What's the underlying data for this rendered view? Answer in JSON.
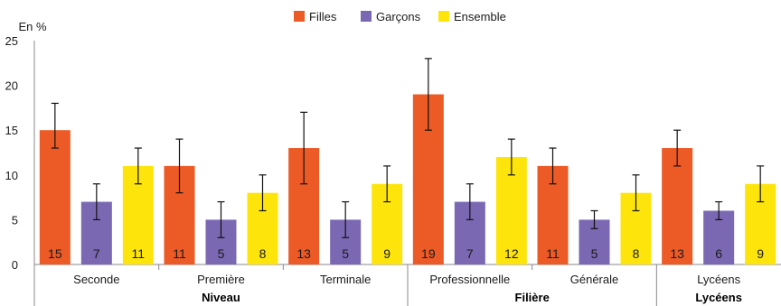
{
  "chart_data": {
    "type": "bar",
    "unit_label": "En %",
    "ylim": [
      0,
      25
    ],
    "yticks": [
      0,
      5,
      10,
      15,
      20,
      25
    ],
    "grid": false,
    "legend_position": "top-center",
    "categories": [
      "Seconde",
      "Première",
      "Terminale",
      "Professionnelle",
      "Générale",
      "Lycéens"
    ],
    "groups": [
      {
        "label": "Niveau",
        "categories": [
          "Seconde",
          "Première",
          "Terminale"
        ]
      },
      {
        "label": "Filière",
        "categories": [
          "Professionnelle",
          "Générale"
        ]
      },
      {
        "label": "Lycéens",
        "categories": [
          "Lycéens"
        ]
      }
    ],
    "series": [
      {
        "name": "Filles",
        "color": "#ec5a25",
        "values": [
          15,
          11,
          13,
          19,
          11,
          13
        ],
        "error_low": [
          13,
          8,
          9,
          15,
          9,
          11
        ],
        "error_high": [
          18,
          14,
          17,
          23,
          13,
          15
        ]
      },
      {
        "name": "Garçons",
        "color": "#7b68b3",
        "values": [
          7,
          5,
          5,
          7,
          5,
          6
        ],
        "error_low": [
          5,
          3,
          3,
          5,
          4,
          5
        ],
        "error_high": [
          9,
          7,
          7,
          9,
          6,
          7
        ]
      },
      {
        "name": "Ensemble",
        "color": "#fde50c",
        "values": [
          11,
          8,
          9,
          12,
          8,
          9
        ],
        "error_low": [
          9,
          6,
          7,
          10,
          6,
          7
        ],
        "error_high": [
          13,
          10,
          11,
          14,
          10,
          11
        ]
      }
    ]
  }
}
